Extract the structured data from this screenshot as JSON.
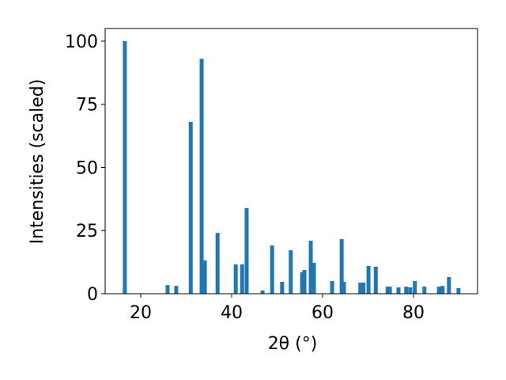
{
  "chart_data": {
    "type": "bar",
    "xlabel": "2θ (°)",
    "ylabel": "Intensities (scaled)",
    "x": [
      16.5,
      25.9,
      27.8,
      31.0,
      33.4,
      34.1,
      36.9,
      40.9,
      42.3,
      43.3,
      46.8,
      48.9,
      51.1,
      53.0,
      55.5,
      56.0,
      57.4,
      58.1,
      62.1,
      64.2,
      64.7,
      68.3,
      69.0,
      70.1,
      71.7,
      74.3,
      74.8,
      76.7,
      78.4,
      79.3,
      80.3,
      82.4,
      85.6,
      86.4,
      87.8,
      89.9
    ],
    "values": [
      100,
      3.4,
      3.1,
      68,
      93,
      13.2,
      24.1,
      11.6,
      11.6,
      33.9,
      1.3,
      19.1,
      4.7,
      17.2,
      8.5,
      9.4,
      21.0,
      12.2,
      5.0,
      21.6,
      4.7,
      4.4,
      4.4,
      11.0,
      10.7,
      2.8,
      2.8,
      2.5,
      2.8,
      2.5,
      5.0,
      2.8,
      2.8,
      3.1,
      6.6,
      2.2
    ],
    "color": "#1f77b4",
    "xlim": [
      12.17,
      94.09
    ],
    "xticks": [
      20,
      40,
      60,
      80
    ],
    "ylim": [
      0,
      105
    ],
    "yticks": [
      0,
      25,
      50,
      75,
      100
    ]
  }
}
